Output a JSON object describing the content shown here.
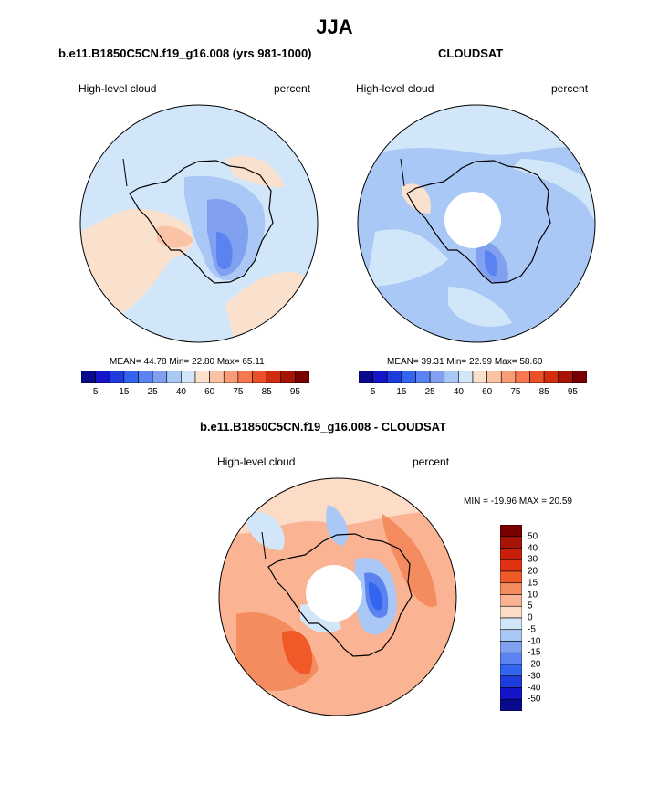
{
  "title": "JJA",
  "panels": {
    "model": {
      "title": "b.e11.B1850C5CN.f19_g16.008 (yrs 981-1000)",
      "variable": "High-level cloud",
      "units": "percent",
      "stats": "MEAN=  44.78  Min=  22.80  Max=  65.11"
    },
    "obs": {
      "title": "CLOUDSAT",
      "variable": "High-level cloud",
      "units": "percent",
      "stats": "MEAN=  39.31  Min=  22.99  Max=  58.60"
    },
    "diff": {
      "title": "b.e11.B1850C5CN.f19_g16.008 - CLOUDSAT",
      "variable": "High-level cloud",
      "units": "percent",
      "stats": "MIN = -19.96 MAX =  20.59"
    }
  },
  "colorbar_abs": {
    "colors": [
      "#0a0a8c",
      "#1414c8",
      "#1e3cdc",
      "#3264f0",
      "#5a82f0",
      "#82a0f0",
      "#aac8f5",
      "#d2e6fa",
      "#fae1cd",
      "#fac3a5",
      "#fa9b78",
      "#f57850",
      "#eb5028",
      "#d22d0f",
      "#a51405",
      "#780000"
    ],
    "tick_labels": [
      "5",
      "15",
      "25",
      "40",
      "60",
      "75",
      "85",
      "95"
    ]
  },
  "colorbar_diff": {
    "colors": [
      "#780000",
      "#a51405",
      "#c81e0a",
      "#e13214",
      "#f05a28",
      "#f58c5f",
      "#fab493",
      "#fcdcc6",
      "#d2e6fa",
      "#aac8f5",
      "#82a0f0",
      "#5a82f0",
      "#3264f0",
      "#1e3cdc",
      "#1414c8",
      "#0a0a8c"
    ],
    "tick_labels": [
      "50",
      "40",
      "30",
      "20",
      "15",
      "10",
      "5",
      "0",
      "-5",
      "-10",
      "-15",
      "-20",
      "-30",
      "-40",
      "-50"
    ]
  }
}
